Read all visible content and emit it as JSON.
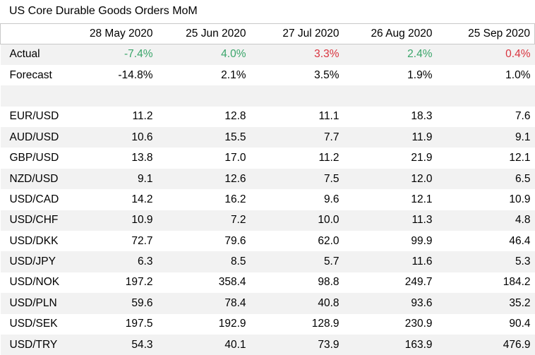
{
  "title": "US Core Durable Goods Orders MoM",
  "headers": [
    "",
    "28 May 2020",
    "25 Jun 2020",
    "27 Jul 2020",
    "26 Aug 2020",
    "25 Sep 2020"
  ],
  "colors": {
    "positive": "#3aa56a",
    "negative": "#d9343f",
    "stripe": "#f2f2f2"
  },
  "actual": {
    "label": "Actual",
    "values": [
      "-7.4%",
      "4.0%",
      "3.3%",
      "2.4%",
      "0.4%"
    ],
    "tones": [
      "pos",
      "pos",
      "neg",
      "pos",
      "neg"
    ]
  },
  "forecast": {
    "label": "Forecast",
    "values": [
      "-14.8%",
      "2.1%",
      "3.5%",
      "1.9%",
      "1.0%"
    ]
  },
  "pairs": [
    {
      "label": "EUR/USD",
      "values": [
        "11.2",
        "12.8",
        "11.1",
        "18.3",
        "7.6"
      ]
    },
    {
      "label": "AUD/USD",
      "values": [
        "10.6",
        "15.5",
        "7.7",
        "11.9",
        "9.1"
      ]
    },
    {
      "label": "GBP/USD",
      "values": [
        "13.8",
        "17.0",
        "11.2",
        "21.9",
        "12.1"
      ]
    },
    {
      "label": "NZD/USD",
      "values": [
        "9.1",
        "12.6",
        "7.5",
        "12.0",
        "6.5"
      ]
    },
    {
      "label": "USD/CAD",
      "values": [
        "14.2",
        "16.2",
        "9.6",
        "12.1",
        "10.9"
      ]
    },
    {
      "label": "USD/CHF",
      "values": [
        "10.9",
        "7.2",
        "10.0",
        "11.3",
        "4.8"
      ]
    },
    {
      "label": "USD/DKK",
      "values": [
        "72.7",
        "79.6",
        "62.0",
        "99.9",
        "46.4"
      ]
    },
    {
      "label": "USD/JPY",
      "values": [
        "6.3",
        "8.5",
        "5.7",
        "11.6",
        "5.3"
      ]
    },
    {
      "label": "USD/NOK",
      "values": [
        "197.2",
        "358.4",
        "98.8",
        "249.7",
        "184.2"
      ]
    },
    {
      "label": "USD/PLN",
      "values": [
        "59.6",
        "78.4",
        "40.8",
        "93.6",
        "35.2"
      ]
    },
    {
      "label": "USD/SEK",
      "values": [
        "197.5",
        "192.9",
        "128.9",
        "230.9",
        "90.4"
      ]
    },
    {
      "label": "USD/TRY",
      "values": [
        "54.3",
        "40.1",
        "73.9",
        "163.9",
        "476.9"
      ]
    }
  ]
}
